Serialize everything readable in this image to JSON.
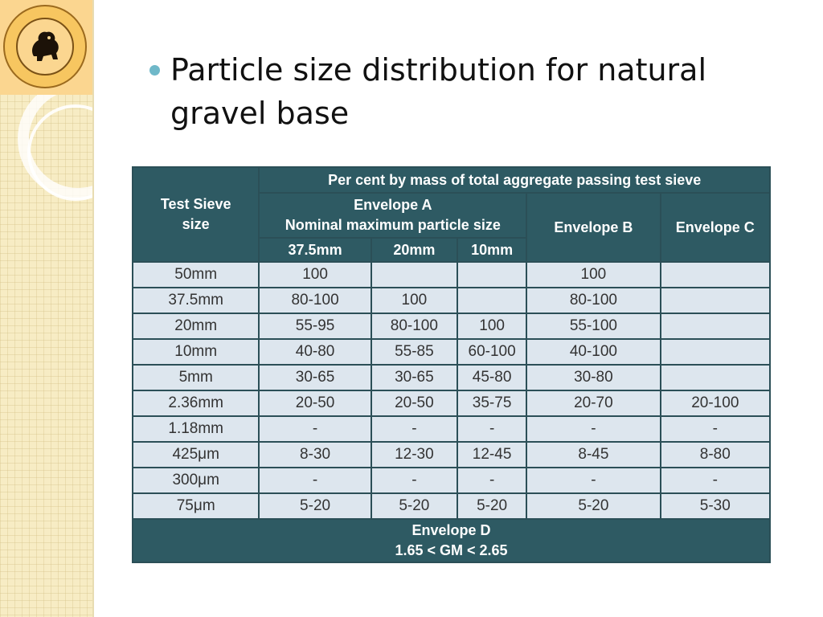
{
  "slide": {
    "title": "Particle size distribution for natural gravel base",
    "logo_icon": "lion-emblem-icon",
    "bullet_icon": "round-bullet-icon"
  },
  "colors": {
    "header_bg": "#2e5a63",
    "cell_bg": "#dde6ee",
    "bullet": "#6fb8c9",
    "strip_bg": "#f7ecc4"
  },
  "table": {
    "header": {
      "test_sieve": "Test Sieve size",
      "per_cent": "Per cent by mass of total aggregate passing test sieve",
      "envelope_a_line1": "Envelope A",
      "envelope_a_line2": "Nominal maximum particle size",
      "envelope_b": "Envelope B",
      "envelope_c": "Envelope C",
      "sub": [
        "37.5mm",
        "20mm",
        "10mm"
      ]
    },
    "rows": [
      [
        "50mm",
        "100",
        "",
        "",
        "100",
        ""
      ],
      [
        "37.5mm",
        "80-100",
        "100",
        "",
        "80-100",
        ""
      ],
      [
        "20mm",
        "55-95",
        "80-100",
        "100",
        "55-100",
        ""
      ],
      [
        "10mm",
        "40-80",
        "55-85",
        "60-100",
        "40-100",
        ""
      ],
      [
        "5mm",
        "30-65",
        "30-65",
        "45-80",
        "30-80",
        ""
      ],
      [
        "2.36mm",
        "20-50",
        "20-50",
        "35-75",
        "20-70",
        "20-100"
      ],
      [
        "1.18mm",
        "-",
        "-",
        "-",
        "-",
        "-"
      ],
      [
        "425μm",
        "8-30",
        "12-30",
        "12-45",
        "8-45",
        "8-80"
      ],
      [
        "300μm",
        "-",
        "-",
        "-",
        "-",
        "-"
      ],
      [
        "75μm",
        "5-20",
        "5-20",
        "5-20",
        "5-20",
        "5-30"
      ]
    ],
    "footer": {
      "line1": "Envelope D",
      "line2": "1.65 < GM < 2.65"
    }
  }
}
